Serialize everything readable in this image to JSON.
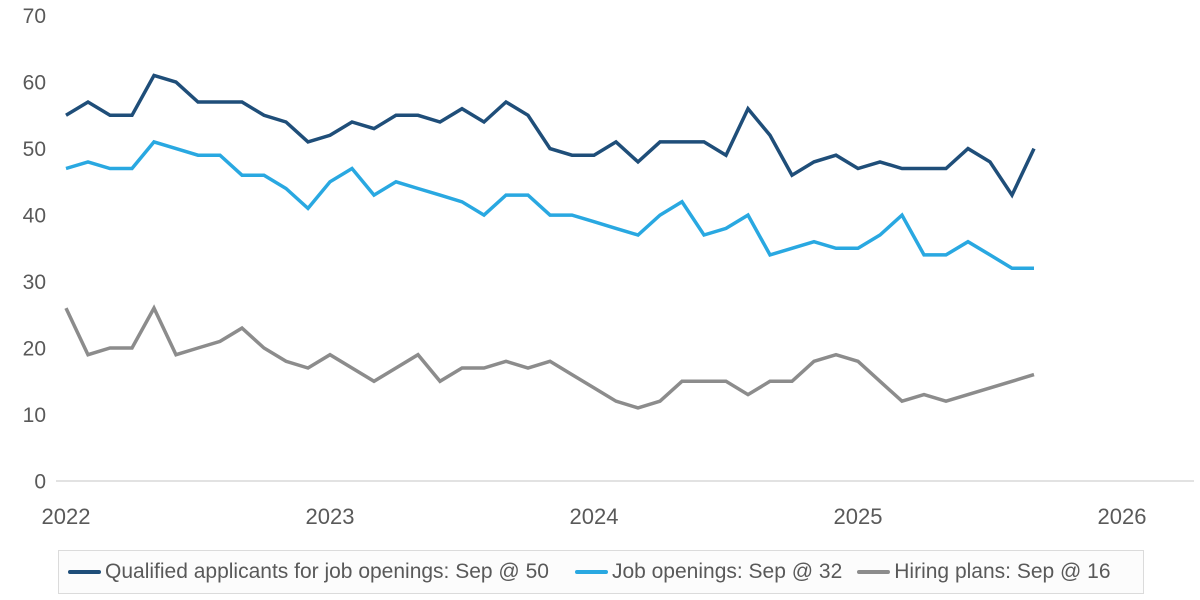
{
  "chart_data": {
    "type": "line",
    "title": "",
    "frequency": "monthly",
    "x_range": {
      "start": "2022-01",
      "end": "2025-09",
      "step": "1 month",
      "points": 45
    },
    "x_tick_labels": [
      "2022",
      "2023",
      "2024",
      "2025",
      "2026"
    ],
    "y_ticks": [
      0,
      10,
      20,
      30,
      40,
      50,
      60,
      70
    ],
    "ylim": [
      0,
      70
    ],
    "grid": "none (baseline only)",
    "legend_position": "bottom",
    "series": [
      {
        "name": "Qualified applicants for job openings: Sep @ 50",
        "color": "#1F4E79",
        "latest_label": "Sep @ 50",
        "values": [
          55,
          57,
          55,
          55,
          61,
          60,
          57,
          57,
          57,
          55,
          54,
          51,
          52,
          54,
          53,
          55,
          55,
          54,
          56,
          54,
          57,
          55,
          50,
          49,
          49,
          51,
          48,
          51,
          51,
          51,
          49,
          56,
          52,
          46,
          48,
          49,
          47,
          48,
          47,
          47,
          47,
          50,
          48,
          43,
          50
        ]
      },
      {
        "name": "Job openings: Sep @ 32",
        "color": "#29A8E1",
        "latest_label": "Sep @ 32",
        "values": [
          47,
          48,
          47,
          47,
          51,
          50,
          49,
          49,
          46,
          46,
          44,
          41,
          45,
          47,
          43,
          45,
          44,
          43,
          42,
          40,
          43,
          43,
          40,
          40,
          39,
          38,
          37,
          40,
          42,
          37,
          38,
          40,
          34,
          35,
          36,
          35,
          35,
          37,
          40,
          34,
          34,
          36,
          34,
          32,
          32
        ]
      },
      {
        "name": "Hiring plans: Sep @ 16",
        "color": "#8C8C8C",
        "latest_label": "Sep @ 16",
        "values": [
          26,
          19,
          20,
          20,
          26,
          19,
          20,
          21,
          23,
          20,
          18,
          17,
          19,
          17,
          15,
          17,
          19,
          15,
          17,
          17,
          18,
          17,
          18,
          16,
          14,
          12,
          11,
          12,
          15,
          15,
          15,
          13,
          15,
          15,
          18,
          19,
          18,
          15,
          12,
          13,
          12,
          13,
          14,
          15,
          16
        ]
      }
    ],
    "colors": {
      "axis_text": "#595959",
      "baseline": "#D9D9D9",
      "legend_border": "#DBDBDB",
      "legend_bg": "#FCFCFC",
      "legend_text": "#595959"
    }
  }
}
